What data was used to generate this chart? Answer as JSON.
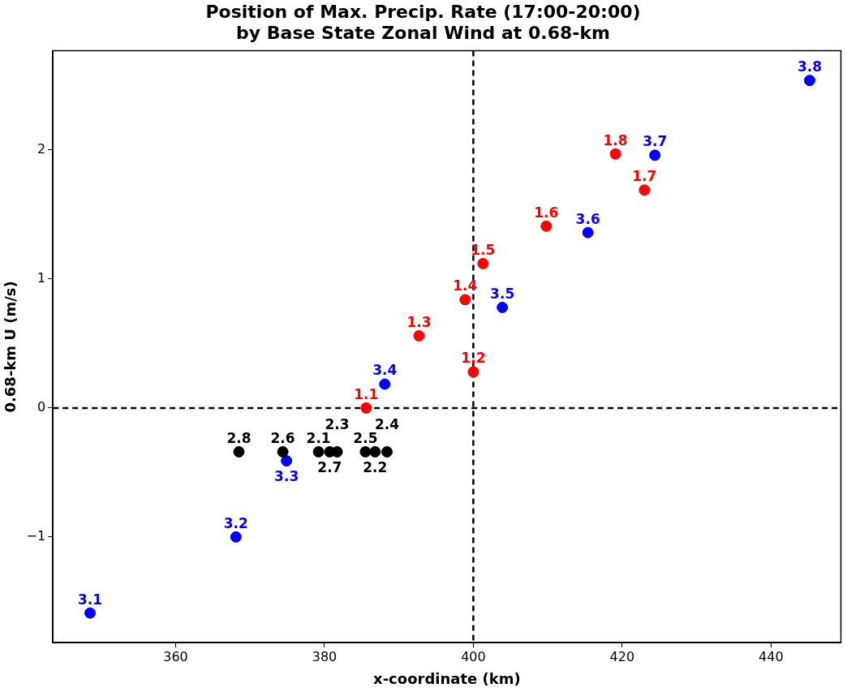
{
  "chart_data": {
    "type": "scatter",
    "title": "Position of Max. Precip. Rate (17:00-20:00)\nby Base State Zonal Wind at 0.68-km",
    "xlabel": "x-coordinate (km)",
    "ylabel": "0.68-km U (m/s)",
    "xlim": [
      343.5,
      449.4
    ],
    "ylim": [
      -1.82,
      2.77
    ],
    "xticks": [
      360,
      380,
      400,
      420,
      440
    ],
    "yticks": [
      -1,
      0,
      1,
      2
    ],
    "grid": false,
    "legend": false,
    "marker": "circle",
    "ref_lines": [
      {
        "axis": "x",
        "value": 400,
        "line_style": "dashed",
        "color": "#000000"
      },
      {
        "axis": "y",
        "value": 0,
        "line_style": "dashed",
        "color": "#000000"
      }
    ],
    "series": [
      {
        "color": "#000000",
        "x": [
          379.2,
          386.8,
          381.7,
          388.4,
          385.5,
          374.4,
          380.7,
          368.5
        ],
        "values": [
          -0.34,
          -0.34,
          -0.34,
          -0.34,
          -0.34,
          -0.34,
          -0.34,
          -0.34
        ]
      },
      {
        "color": "#ff0000",
        "x": [
          385.6,
          400,
          392.7,
          398.9,
          401.3,
          409.8,
          423.0,
          419.1
        ],
        "values": [
          0,
          0.28,
          0.56,
          0.84,
          1.12,
          1.41,
          1.69,
          1.97
        ]
      },
      {
        "color": "#0000ff",
        "x": [
          348.5,
          368.1,
          374.9,
          388.1,
          403.9,
          415.4,
          424.4,
          445.2
        ],
        "values": [
          -1.59,
          -1.0,
          -0.41,
          0.185,
          0.78,
          1.36,
          1.96,
          2.54
        ]
      }
    ],
    "annotations": [
      {
        "text": "1.1",
        "x": 385.6,
        "y": 0
      },
      {
        "text": "1.2",
        "x": 400,
        "y": 0.28
      },
      {
        "text": "1.3",
        "x": 392.7,
        "y": 0.56
      },
      {
        "text": "1.4",
        "x": 398.9,
        "y": 0.84
      },
      {
        "text": "1.5",
        "x": 401.3,
        "y": 1.12
      },
      {
        "text": "1.6",
        "x": 409.8,
        "y": 1.41
      },
      {
        "text": "1.7",
        "x": 423.0,
        "y": 1.69
      },
      {
        "text": "1.8",
        "x": 419.1,
        "y": 1.97
      },
      {
        "text": "2.8",
        "x": 368.5,
        "y": -0.34
      },
      {
        "text": "2.6",
        "x": 374.4,
        "y": -0.34
      },
      {
        "text": "2.1",
        "x": 379.2,
        "y": -0.34
      },
      {
        "text": "2.7",
        "x": 380.7,
        "y": -0.34
      },
      {
        "text": "2.3",
        "x": 381.7,
        "y": -0.34
      },
      {
        "text": "2.5",
        "x": 385.5,
        "y": -0.34
      },
      {
        "text": "2.2",
        "x": 386.8,
        "y": -0.34
      },
      {
        "text": "2.4",
        "x": 388.4,
        "y": -0.34
      },
      {
        "text": "3.1",
        "x": 348.5,
        "y": -1.59
      },
      {
        "text": "3.2",
        "x": 368.1,
        "y": -1.0
      },
      {
        "text": "3.3",
        "x": 374.9,
        "y": -0.41
      },
      {
        "text": "3.4",
        "x": 388.1,
        "y": 0.185
      },
      {
        "text": "3.5",
        "x": 403.9,
        "y": 0.78
      },
      {
        "text": "3.6",
        "x": 415.4,
        "y": 1.36
      },
      {
        "text": "3.7",
        "x": 424.4,
        "y": 1.96
      },
      {
        "text": "3.8",
        "x": 445.2,
        "y": 2.54
      }
    ]
  }
}
